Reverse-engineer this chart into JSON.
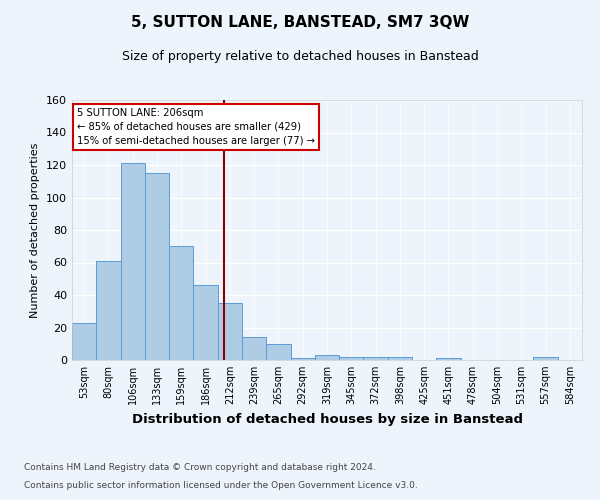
{
  "title": "5, SUTTON LANE, BANSTEAD, SM7 3QW",
  "subtitle": "Size of property relative to detached houses in Banstead",
  "xlabel": "Distribution of detached houses by size in Banstead",
  "ylabel": "Number of detached properties",
  "bar_labels": [
    "53sqm",
    "80sqm",
    "106sqm",
    "133sqm",
    "159sqm",
    "186sqm",
    "212sqm",
    "239sqm",
    "265sqm",
    "292sqm",
    "319sqm",
    "345sqm",
    "372sqm",
    "398sqm",
    "425sqm",
    "451sqm",
    "478sqm",
    "504sqm",
    "531sqm",
    "557sqm",
    "584sqm"
  ],
  "bar_values": [
    23,
    61,
    121,
    115,
    70,
    46,
    35,
    14,
    10,
    1,
    3,
    2,
    2,
    2,
    0,
    1,
    0,
    0,
    0,
    2,
    0
  ],
  "bar_color": "#aecce4",
  "bar_edgecolor": "#5b9bd5",
  "vline_x": 5.77,
  "vline_color": "#8b0000",
  "annotation_line1": "5 SUTTON LANE: 206sqm",
  "annotation_line2": "← 85% of detached houses are smaller (429)",
  "annotation_line3": "15% of semi-detached houses are larger (77) →",
  "annotation_box_color": "#ffffff",
  "annotation_border_color": "#cc0000",
  "ylim": [
    0,
    160
  ],
  "yticks": [
    0,
    20,
    40,
    60,
    80,
    100,
    120,
    140,
    160
  ],
  "footnote1": "Contains HM Land Registry data © Crown copyright and database right 2024.",
  "footnote2": "Contains public sector information licensed under the Open Government Licence v3.0.",
  "background_color": "#eef4fb",
  "grid_color": "#ffffff",
  "title_fontsize": 11,
  "subtitle_fontsize": 9,
  "xlabel_fontsize": 9,
  "ylabel_fontsize": 8,
  "tick_fontsize": 7,
  "footnote_fontsize": 6.5
}
